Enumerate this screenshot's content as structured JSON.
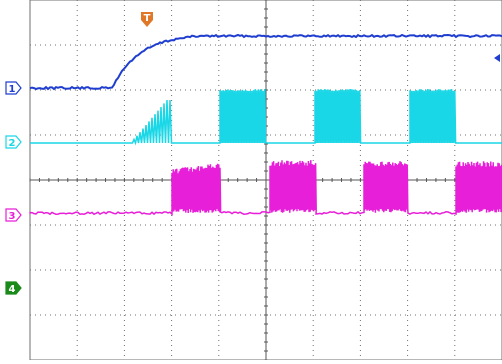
{
  "screen": {
    "background": "#ffffff",
    "grid_color": "#6f6f6f",
    "divisions_x": 10,
    "divisions_y": 8
  },
  "trigger": {
    "marker_label": "T",
    "marker_icon": "trigger-t-icon",
    "marker_color": "#e0782a",
    "level_arrow_icon": "trigger-level-arrow-icon",
    "level_arrow_color": "#1f3ed0"
  },
  "channels": [
    {
      "id": 1,
      "label": "1",
      "color": "#1f3ed0",
      "label_fill": "#ffffff",
      "label_border": "#1f3ed0",
      "label_text": "#1f3ed0"
    },
    {
      "id": 2,
      "label": "2",
      "color": "#19d7e6",
      "label_fill": "#ffffff",
      "label_border": "#19d7e6",
      "label_text": "#19d7e6"
    },
    {
      "id": 3,
      "label": "3",
      "color": "#e81fd8",
      "label_fill": "#ffffff",
      "label_border": "#e81fd8",
      "label_text": "#e81fd8"
    },
    {
      "id": 4,
      "label": "4",
      "color": "#22d322",
      "label_fill": "#1a8a1a",
      "label_border": "#1a8a1a",
      "label_text": "#ffffff"
    }
  ]
}
